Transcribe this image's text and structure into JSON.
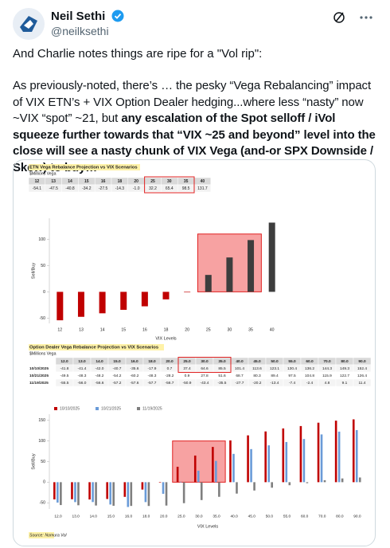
{
  "header": {
    "name": "Neil Sethi",
    "handle": "@neilksethi"
  },
  "tweet": {
    "line1": "And Charlie notes things are ripe for a \"Vol rip\":",
    "body": "As previously-noted, there’s … the pesky “Vega Rebalancing” impact of VIX ETN’s + VIX Option Dealer hedging...where less “nasty” now ~VIX “spot” ~21, but ",
    "body_bold": "any escalation of the Spot selloff / iVol squeeze further towards that “VIX ~25 and beyond” level into the close will see a nasty chunk of VIX Vega (and-or SPX Downside / Skew) to buy…"
  },
  "image": {
    "chart1": {
      "type": "bar",
      "title": "ETN Vega Rebalance Projection vs VIX Scenarios",
      "subtitle": "$Millions Vega",
      "categories": [
        "12",
        "13",
        "14",
        "15",
        "16",
        "18",
        "20",
        "25",
        "30",
        "35",
        "40"
      ],
      "values": [
        -54.1,
        -47.5,
        -40.8,
        -34.2,
        -27.5,
        -14.3,
        -1,
        32.2,
        65.4,
        98.5,
        131.7
      ],
      "value_labels": [
        "-54.1",
        "-47.5",
        "-40.8",
        "-34.2",
        "-27.5",
        "-14.3",
        "-1.0",
        "32.2",
        "65.4",
        "98.5",
        "131.7"
      ],
      "negative_color": "#c00000",
      "positive_color": "#3d3d3d",
      "ylim": [
        -60,
        140
      ],
      "yticks": [
        -50,
        0,
        50,
        100
      ],
      "xlabel": "VIX Levels",
      "ylabel": "Sell/Buy"
    },
    "chart2": {
      "type": "grouped_bar",
      "title": "Option Dealer Vega Rebalance Projection vs VIX Scenarios",
      "subtitle": "$Millions Vega",
      "categories": [
        "12.0",
        "13.0",
        "14.0",
        "15.0",
        "16.0",
        "18.0",
        "20.0",
        "25.0",
        "30.0",
        "35.0",
        "40.0",
        "45.0",
        "50.0",
        "55.0",
        "60.0",
        "70.0",
        "80.0",
        "90.0"
      ],
      "series": [
        {
          "name": "10/10/2025",
          "color": "#c00000",
          "values": [
            -41.8,
            -41.4,
            -42,
            -40.7,
            -35.6,
            -17.9,
            0.7,
            37.4,
            64.6,
            85.5,
            101.4,
            113.6,
            123.1,
            130.4,
            136.2,
            144.3,
            149.3,
            152.4
          ],
          "value_labels": [
            "-41.8",
            "-41.4",
            "-42.0",
            "-40.7",
            "-35.6",
            "-17.9",
            "0.7",
            "37.4",
            "64.6",
            "85.5",
            "101.4",
            "113.6",
            "123.1",
            "130.4",
            "136.2",
            "144.3",
            "149.3",
            "152.4"
          ]
        },
        {
          "name": "10/21/2025",
          "color": "#6a9bd8",
          "values": [
            -49.5,
            -48.3,
            -48.2,
            -54.2,
            -60.2,
            -48.3,
            -28.2,
            0.9,
            27.8,
            51.6,
            68.7,
            80.3,
            89.4,
            97.5,
            104.8,
            115.9,
            122.7,
            126.4
          ],
          "value_labels": [
            "-49.5",
            "-48.3",
            "-48.2",
            "-54.2",
            "-60.2",
            "-48.3",
            "-28.2",
            "0.9",
            "27.8",
            "51.6",
            "68.7",
            "80.3",
            "89.4",
            "97.5",
            "104.8",
            "115.9",
            "122.7",
            "126.4"
          ]
        },
        {
          "name": "11/19/2025",
          "color": "#7f7f7f",
          "values": [
            -55.5,
            -56,
            -56.6,
            -57.2,
            -57.6,
            -57.7,
            -56.7,
            -50.9,
            -43.4,
            -35.5,
            -27.7,
            -20.2,
            -13.4,
            -7.4,
            -2.4,
            4.8,
            9.1,
            11.4
          ],
          "value_labels": [
            "-55.5",
            "-56.0",
            "-56.6",
            "-57.2",
            "-57.6",
            "-57.7",
            "-56.7",
            "-50.9",
            "-43.4",
            "-35.5",
            "-27.7",
            "-20.2",
            "-13.4",
            "-7.4",
            "-2.4",
            "4.8",
            "9.1",
            "11.4"
          ]
        }
      ],
      "ylim": [
        -65,
        165
      ],
      "yticks": [
        -50,
        0,
        50,
        100,
        150
      ],
      "xlabel": "VIX Levels",
      "ylabel": "Sell/Buy"
    },
    "source": "Source: Nomura Vol"
  }
}
